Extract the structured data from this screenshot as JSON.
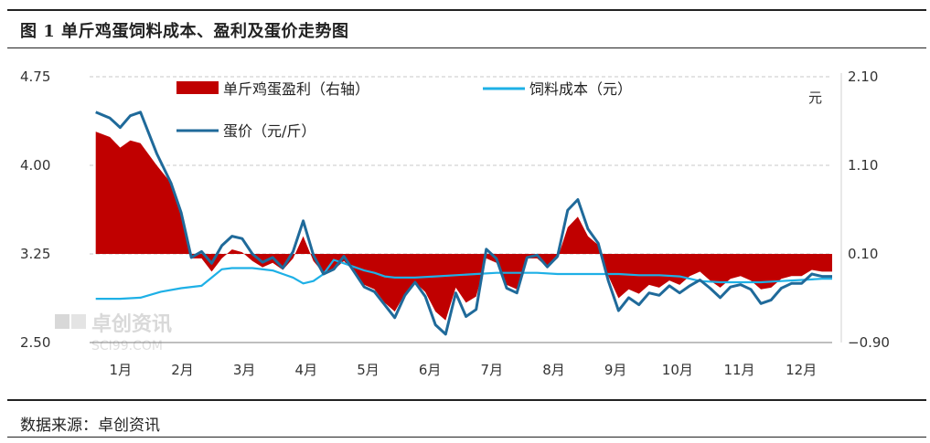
{
  "title": "图 1  单斤鸡蛋饲料成本、盈利及蛋价走势图",
  "source": "数据来源：卓创资讯",
  "watermark": {
    "cn": "卓创资讯",
    "en": "SCI99.COM"
  },
  "colors": {
    "profit": "#C00000",
    "feed": "#1EB0E6",
    "egg": "#1F6A9A",
    "grid": "#c8c8c8",
    "axis": "#7f7f7f"
  },
  "chart_data": {
    "type": "line",
    "left_axis": {
      "ylim": [
        2.5,
        4.75
      ],
      "ticks": [
        "4.75",
        "4.00",
        "3.25",
        "2.50"
      ]
    },
    "right_axis": {
      "ylim": [
        -0.9,
        2.1
      ],
      "ticks": [
        "2.10",
        "1.10",
        "0.10",
        "−0.90"
      ],
      "unit": "元"
    },
    "x_ticks": [
      "1月",
      "2月",
      "3月",
      "4月",
      "5月",
      "6月",
      "7月",
      "8月",
      "9月",
      "10月",
      "11月",
      "12月"
    ],
    "x_domain": [
      0,
      365
    ],
    "legend": [
      "单斤鸡蛋盈利（右轴）",
      "饲料成本（元）",
      "蛋价（元/斤）"
    ],
    "series": [
      {
        "name": "单斤鸡蛋盈利（右轴）",
        "type": "area",
        "axis": "right",
        "x": [
          3,
          10,
          15,
          20,
          25,
          33,
          40,
          45,
          50,
          55,
          60,
          65,
          70,
          75,
          80,
          85,
          90,
          95,
          100,
          105,
          110,
          115,
          120,
          125,
          130,
          135,
          140,
          145,
          150,
          155,
          160,
          165,
          170,
          175,
          180,
          185,
          190,
          195,
          200,
          205,
          210,
          215,
          220,
          225,
          230,
          235,
          240,
          245,
          250,
          255,
          260,
          265,
          270,
          275,
          280,
          285,
          290,
          295,
          300,
          305,
          310,
          315,
          320,
          325,
          330,
          335,
          340,
          345,
          350,
          355,
          360,
          365
        ],
        "values": [
          1.48,
          1.42,
          1.3,
          1.38,
          1.35,
          1.1,
          0.9,
          0.55,
          0.05,
          0.05,
          -0.1,
          0.05,
          0.15,
          0.12,
          0.02,
          -0.05,
          0.0,
          -0.08,
          0.05,
          0.3,
          0.02,
          -0.12,
          -0.08,
          0.02,
          -0.1,
          -0.25,
          -0.3,
          -0.45,
          -0.55,
          -0.35,
          -0.22,
          -0.33,
          -0.55,
          -0.65,
          -0.28,
          -0.45,
          -0.38,
          0.05,
          0.0,
          -0.25,
          -0.3,
          0.05,
          0.05,
          -0.05,
          0.05,
          0.4,
          0.52,
          0.3,
          0.2,
          -0.15,
          -0.4,
          -0.3,
          -0.35,
          -0.25,
          -0.28,
          -0.2,
          -0.25,
          -0.15,
          -0.1,
          -0.2,
          -0.28,
          -0.18,
          -0.15,
          -0.2,
          -0.3,
          -0.28,
          -0.18,
          -0.15,
          -0.15,
          -0.08,
          -0.1,
          -0.1
        ]
      },
      {
        "name": "饲料成本（元）",
        "type": "line",
        "axis": "left",
        "x": [
          3,
          15,
          25,
          35,
          45,
          55,
          60,
          65,
          70,
          80,
          90,
          95,
          100,
          105,
          110,
          115,
          120,
          125,
          130,
          135,
          140,
          145,
          150,
          160,
          170,
          180,
          190,
          200,
          210,
          220,
          230,
          240,
          250,
          260,
          270,
          280,
          290,
          300,
          310,
          320,
          330,
          340,
          350,
          360,
          365
        ],
        "values": [
          2.87,
          2.87,
          2.88,
          2.93,
          2.96,
          2.98,
          3.05,
          3.12,
          3.13,
          3.13,
          3.11,
          3.08,
          3.05,
          3.0,
          3.02,
          3.08,
          3.2,
          3.17,
          3.14,
          3.11,
          3.09,
          3.06,
          3.05,
          3.05,
          3.06,
          3.07,
          3.08,
          3.09,
          3.09,
          3.09,
          3.08,
          3.08,
          3.08,
          3.08,
          3.07,
          3.07,
          3.06,
          3.02,
          3.01,
          3.01,
          3.01,
          3.02,
          3.03,
          3.04,
          3.04
        ]
      },
      {
        "name": "蛋价（元/斤）",
        "type": "line",
        "axis": "left",
        "x": [
          3,
          10,
          15,
          20,
          25,
          33,
          40,
          45,
          50,
          55,
          60,
          65,
          70,
          75,
          80,
          85,
          90,
          95,
          100,
          105,
          110,
          115,
          120,
          125,
          130,
          135,
          140,
          145,
          150,
          155,
          160,
          165,
          170,
          175,
          180,
          185,
          190,
          195,
          200,
          205,
          210,
          215,
          220,
          225,
          230,
          235,
          240,
          245,
          250,
          255,
          260,
          265,
          270,
          275,
          280,
          285,
          290,
          295,
          300,
          305,
          310,
          315,
          320,
          325,
          330,
          335,
          340,
          345,
          350,
          355,
          360,
          365
        ],
        "values": [
          4.45,
          4.4,
          4.32,
          4.42,
          4.45,
          4.1,
          3.85,
          3.6,
          3.22,
          3.27,
          3.17,
          3.32,
          3.4,
          3.38,
          3.25,
          3.18,
          3.22,
          3.13,
          3.27,
          3.53,
          3.24,
          3.08,
          3.12,
          3.23,
          3.1,
          2.97,
          2.93,
          2.82,
          2.71,
          2.9,
          3.01,
          2.89,
          2.65,
          2.57,
          2.92,
          2.72,
          2.78,
          3.29,
          3.21,
          2.96,
          2.92,
          3.22,
          3.24,
          3.14,
          3.23,
          3.62,
          3.71,
          3.46,
          3.34,
          3.02,
          2.77,
          2.88,
          2.82,
          2.92,
          2.9,
          2.98,
          2.92,
          2.98,
          3.03,
          2.96,
          2.88,
          2.97,
          2.99,
          2.95,
          2.83,
          2.86,
          2.96,
          3.0,
          3.0,
          3.08,
          3.06,
          3.06
        ]
      }
    ]
  }
}
